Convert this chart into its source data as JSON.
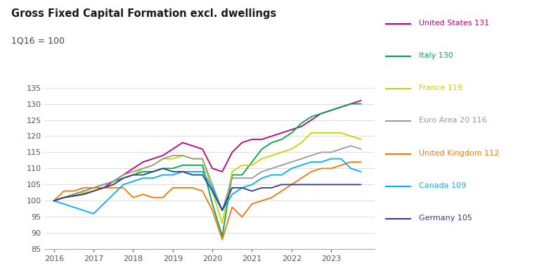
{
  "title": "Gross Fixed Capital Formation excl. dwellings",
  "subtitle": "1Q16 = 100",
  "ylim": [
    85,
    137
  ],
  "yticks": [
    85,
    90,
    95,
    100,
    105,
    110,
    115,
    120,
    125,
    130,
    135
  ],
  "background_color": "#ffffff",
  "series": {
    "United States": {
      "color": "#c0007a",
      "label": "United States 131",
      "data": [
        100,
        101,
        101.5,
        102,
        103,
        104,
        106,
        108,
        110,
        112,
        113,
        114,
        116,
        118,
        117,
        116,
        110,
        109,
        115,
        118,
        119,
        119,
        120,
        121,
        122,
        123,
        125,
        127,
        128,
        129,
        130,
        131
      ]
    },
    "Italy": {
      "color": "#00a64b",
      "label": "Italy 130",
      "data": [
        100,
        101,
        102,
        103,
        104,
        105,
        106,
        107,
        108,
        109,
        109,
        110,
        110,
        111,
        111,
        111,
        99,
        89,
        108,
        108,
        112,
        116,
        118,
        119,
        121,
        124,
        126,
        127,
        128,
        129,
        130,
        130
      ]
    },
    "France": {
      "color": "#c8d400",
      "label": "France 119",
      "data": [
        100,
        101,
        102,
        102.5,
        103,
        104,
        105,
        107,
        108,
        110,
        111,
        113,
        113,
        114,
        113,
        113,
        103,
        93,
        109,
        111,
        111,
        113,
        114,
        115,
        116,
        118,
        121,
        121,
        121,
        121,
        120,
        119
      ]
    },
    "Euro Area 20": {
      "color": "#999999",
      "label": "Euro Area 20 116",
      "data": [
        100,
        101,
        102,
        103,
        104,
        105,
        106,
        108,
        109,
        110,
        111,
        113,
        114,
        114,
        113,
        113,
        105,
        97,
        107,
        107,
        107,
        109,
        110,
        111,
        112,
        113,
        114,
        115,
        115,
        116,
        117,
        116
      ]
    },
    "United Kingdom": {
      "color": "#f07800",
      "label": "United Kingdom 112",
      "data": [
        100,
        103,
        103,
        104,
        104,
        104,
        104,
        104,
        101,
        102,
        101,
        101,
        104,
        104,
        104,
        103,
        97,
        88,
        98,
        95,
        99,
        100,
        101,
        103,
        105,
        107,
        109,
        110,
        110,
        111,
        112,
        112
      ]
    },
    "Canada": {
      "color": "#00b0f0",
      "label": "Canada 109",
      "data": [
        100,
        99,
        98,
        97,
        96,
        99,
        102,
        105,
        106,
        107,
        107,
        108,
        108,
        109,
        109,
        109,
        104,
        97,
        102,
        104,
        105,
        107,
        108,
        108,
        110,
        111,
        112,
        112,
        113,
        113,
        110,
        109
      ]
    },
    "Germany": {
      "color": "#2e3d8f",
      "label": "Germany 105",
      "data": [
        100,
        101,
        101.5,
        102,
        103,
        104,
        105,
        107,
        108,
        108,
        109,
        110,
        109,
        109,
        108,
        108,
        103,
        97,
        104,
        104,
        103,
        104,
        104,
        105,
        105,
        105,
        105,
        105,
        105,
        105,
        105,
        105
      ]
    }
  },
  "legend_order": [
    "United States",
    "Italy",
    "France",
    "Euro Area 20",
    "United Kingdom",
    "Canada",
    "Germany"
  ],
  "legend_labels": {
    "United States": "United States 131",
    "Italy": "Italy 130",
    "France": "France 119",
    "Euro Area 20": "Euro Area 20 116",
    "United Kingdom": "United Kingdom 112",
    "Canada": "Canada 109",
    "Germany": "Germany 105"
  }
}
